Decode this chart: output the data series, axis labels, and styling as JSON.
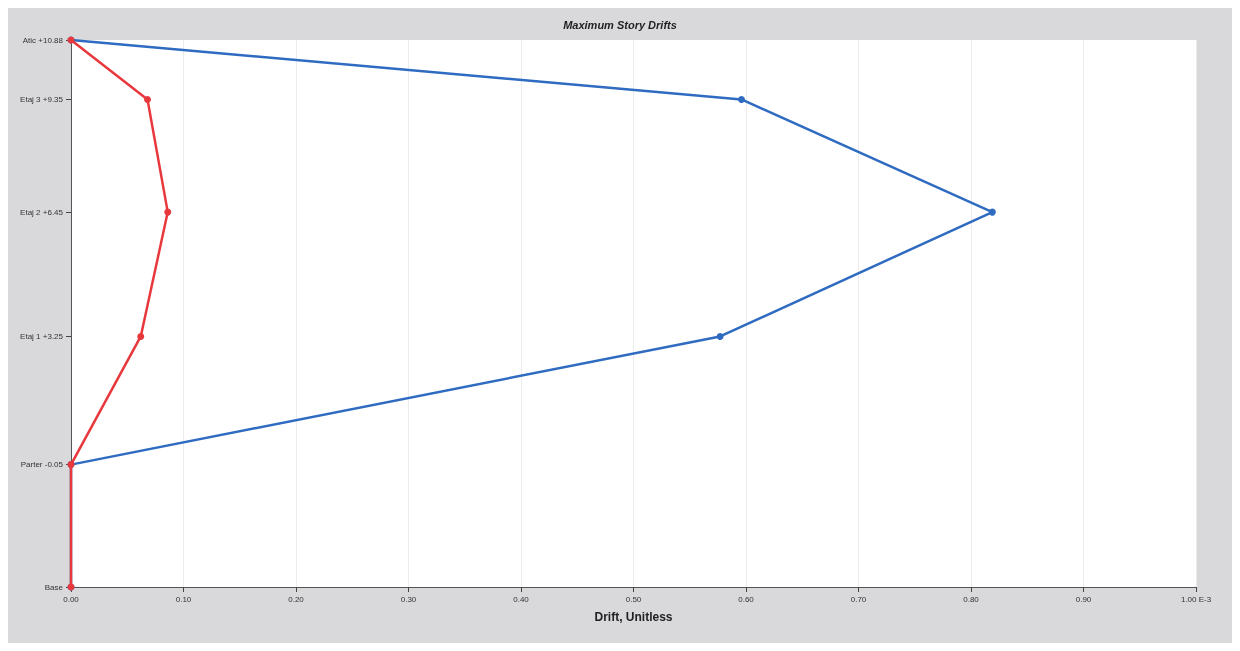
{
  "chart_data": {
    "type": "line",
    "title": "Maximum Story Drifts",
    "xlabel": "Drift, Unitless",
    "series": [
      {
        "color": "#e8383d",
        "x": [
          0,
          0,
          0.062,
          0.086,
          0.068,
          0
        ],
        "values": [
          -3.2,
          -0.05,
          3.25,
          6.45,
          9.35,
          10.88
        ]
      },
      {
        "color": "#2f6bc0",
        "x": [
          0,
          0,
          0.577,
          0.819,
          0.596,
          0
        ],
        "values": [
          -3.2,
          -0.05,
          3.25,
          6.45,
          9.35,
          10.88
        ]
      }
    ],
    "xlim": [
      0,
      1
    ],
    "xticks": [
      {
        "value": 0,
        "label": "0.00"
      },
      {
        "value": 0.1,
        "label": "0.10"
      },
      {
        "value": 0.2,
        "label": "0.20"
      },
      {
        "value": 0.3,
        "label": "0.30"
      },
      {
        "value": 0.4,
        "label": "0.40"
      },
      {
        "value": 0.5,
        "label": "0.50"
      },
      {
        "value": 0.6,
        "label": "0.60"
      },
      {
        "value": 0.7,
        "label": "0.70"
      },
      {
        "value": 0.8,
        "label": "0.80"
      },
      {
        "value": 0.9,
        "label": "0.90"
      },
      {
        "value": 1,
        "label": "1.00 E-3"
      }
    ],
    "ylim": [
      -3.2,
      10.88
    ],
    "yticks": [
      {
        "value": -3.2,
        "label": "Base"
      },
      {
        "value": -0.05,
        "label": "Parter -0.05"
      },
      {
        "value": 3.25,
        "label": "Etaj 1 +3.25"
      },
      {
        "value": 6.45,
        "label": "Etaj 2 +6.45"
      },
      {
        "value": 9.35,
        "label": "Etaj 3 +9.35"
      },
      {
        "value": 10.88,
        "label": "Atic +10.88"
      }
    ],
    "grid": "x",
    "marker": "circle",
    "line_style": "solid"
  }
}
